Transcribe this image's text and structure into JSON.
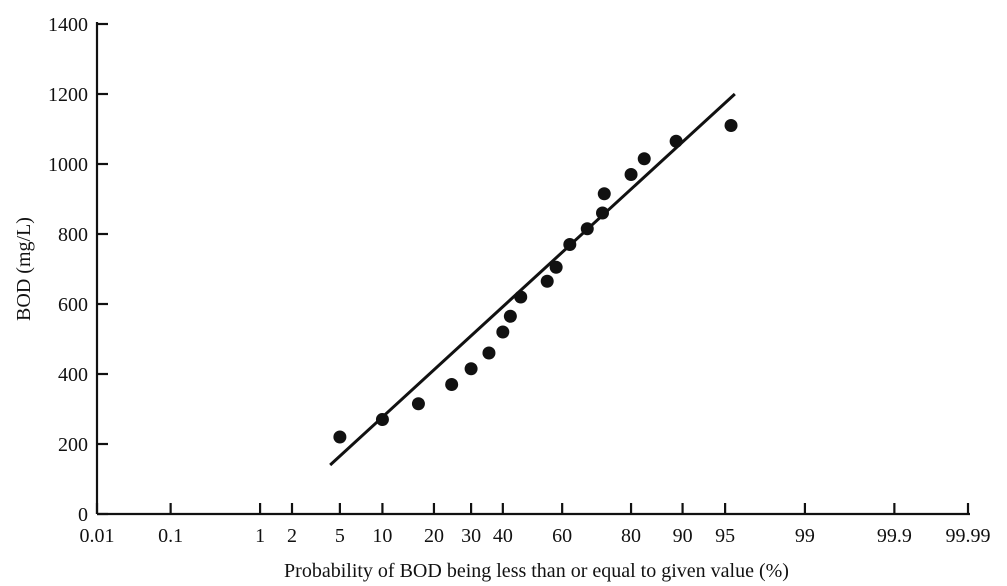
{
  "chart_data": {
    "type": "scatter",
    "title": "",
    "xlabel": "Probability of BOD being less than or equal to given value (%)",
    "ylabel": "BOD (mg/L)",
    "x_scale": "normal-probability",
    "xlim": [
      0.01,
      99.99
    ],
    "ylim": [
      0,
      1400
    ],
    "x_ticks": [
      {
        "value": 0.01,
        "label": "0.01"
      },
      {
        "value": 0.1,
        "label": "0.1"
      },
      {
        "value": 1,
        "label": "1"
      },
      {
        "value": 2,
        "label": "2"
      },
      {
        "value": 5,
        "label": "5"
      },
      {
        "value": 10,
        "label": "10"
      },
      {
        "value": 20,
        "label": "20"
      },
      {
        "value": 30,
        "label": "30"
      },
      {
        "value": 40,
        "label": "40"
      },
      {
        "value": 60,
        "label": "60"
      },
      {
        "value": 80,
        "label": "80"
      },
      {
        "value": 90,
        "label": "90"
      },
      {
        "value": 95,
        "label": "95"
      },
      {
        "value": 99,
        "label": "99"
      },
      {
        "value": 99.9,
        "label": "99.9"
      },
      {
        "value": 99.99,
        "label": "99.99"
      }
    ],
    "y_ticks": [
      {
        "value": 0,
        "label": "0"
      },
      {
        "value": 200,
        "label": "200"
      },
      {
        "value": 400,
        "label": "400"
      },
      {
        "value": 600,
        "label": "600"
      },
      {
        "value": 800,
        "label": "800"
      },
      {
        "value": 1000,
        "label": "1000"
      },
      {
        "value": 1200,
        "label": "1200"
      },
      {
        "value": 1400,
        "label": "1400"
      }
    ],
    "grid": false,
    "legend": "none",
    "points": [
      {
        "x": 5.0,
        "y": 220
      },
      {
        "x": 10.0,
        "y": 270
      },
      {
        "x": 16.5,
        "y": 315
      },
      {
        "x": 24.5,
        "y": 370
      },
      {
        "x": 30.0,
        "y": 415
      },
      {
        "x": 35.5,
        "y": 460
      },
      {
        "x": 40.0,
        "y": 520
      },
      {
        "x": 42.5,
        "y": 565
      },
      {
        "x": 46.0,
        "y": 620
      },
      {
        "x": 55.0,
        "y": 665
      },
      {
        "x": 58.0,
        "y": 705
      },
      {
        "x": 62.5,
        "y": 770
      },
      {
        "x": 68.0,
        "y": 815
      },
      {
        "x": 72.5,
        "y": 860
      },
      {
        "x": 73.0,
        "y": 915
      },
      {
        "x": 80.0,
        "y": 970
      },
      {
        "x": 83.0,
        "y": 1015
      },
      {
        "x": 89.0,
        "y": 1065
      },
      {
        "x": 95.5,
        "y": 1110
      }
    ],
    "fit_line": [
      {
        "x": 4.2,
        "y": 140
      },
      {
        "x": 95.8,
        "y": 1200
      }
    ]
  }
}
